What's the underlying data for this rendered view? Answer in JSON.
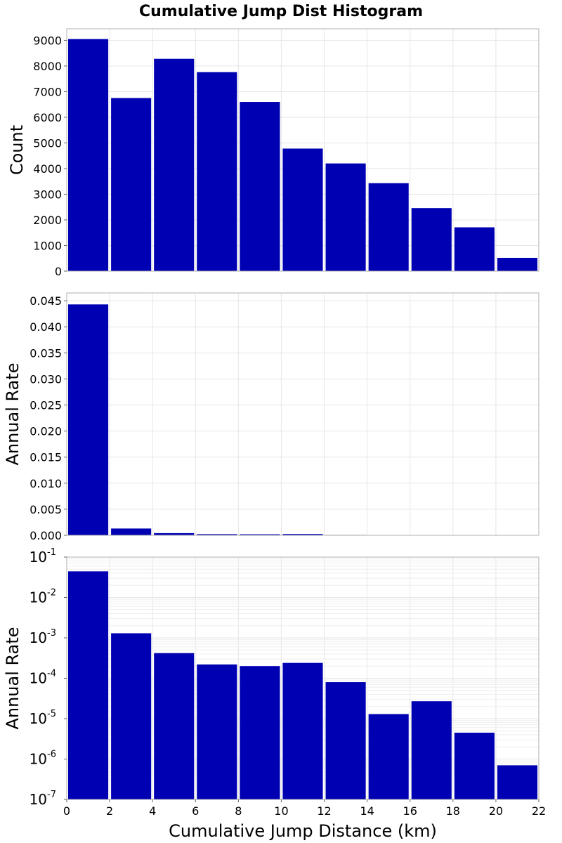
{
  "chart_data": {
    "type": "bar",
    "title": "Cumulative Jump Dist Histogram",
    "xlabel": "Cumulative Jump Distance (km)",
    "xlim": [
      0,
      22
    ],
    "x_ticks": [
      "0",
      "2",
      "4",
      "6",
      "8",
      "10",
      "12",
      "14",
      "16",
      "18",
      "20",
      "22"
    ],
    "bar_color": "#0000B3",
    "bins": [
      {
        "x0": 0,
        "x1": 2
      },
      {
        "x0": 2,
        "x1": 4
      },
      {
        "x0": 4,
        "x1": 6
      },
      {
        "x0": 6,
        "x1": 8
      },
      {
        "x0": 8,
        "x1": 10
      },
      {
        "x0": 10,
        "x1": 12
      },
      {
        "x0": 12,
        "x1": 14
      },
      {
        "x0": 14,
        "x1": 16
      },
      {
        "x0": 16,
        "x1": 18
      },
      {
        "x0": 18,
        "x1": 20
      },
      {
        "x0": 20,
        "x1": 22
      }
    ],
    "panels": [
      {
        "ylabel": "Count",
        "scale": "linear",
        "ylim": [
          0,
          9450
        ],
        "y_ticks": [
          "0",
          "1000",
          "2000",
          "3000",
          "4000",
          "5000",
          "6000",
          "7000",
          "8000",
          "9000"
        ],
        "y_tick_values": [
          0,
          1000,
          2000,
          3000,
          4000,
          5000,
          6000,
          7000,
          8000,
          9000
        ],
        "values": [
          9050,
          6750,
          8280,
          7760,
          6600,
          4780,
          4200,
          3430,
          2460,
          1710,
          520
        ]
      },
      {
        "ylabel": "Annual Rate",
        "scale": "linear",
        "ylim": [
          0,
          0.0465
        ],
        "y_ticks": [
          "0.000",
          "0.005",
          "0.010",
          "0.015",
          "0.020",
          "0.025",
          "0.030",
          "0.035",
          "0.040",
          "0.045"
        ],
        "y_tick_values": [
          0,
          0.005,
          0.01,
          0.015,
          0.02,
          0.025,
          0.03,
          0.035,
          0.04,
          0.045
        ],
        "values": [
          0.0443,
          0.0013,
          0.00042,
          0.00022,
          0.0002,
          0.00024,
          8e-05,
          1.3e-05,
          2.7e-05,
          4.5e-06,
          7e-07
        ]
      },
      {
        "ylabel": "Annual Rate",
        "scale": "log",
        "ylim": [
          1e-07,
          0.1
        ],
        "y_ticks": [
          {
            "base": "10",
            "exp": "-7",
            "value": 1e-07
          },
          {
            "base": "10",
            "exp": "-6",
            "value": 1e-06
          },
          {
            "base": "10",
            "exp": "-5",
            "value": 1e-05
          },
          {
            "base": "10",
            "exp": "-4",
            "value": 0.0001
          },
          {
            "base": "10",
            "exp": "-3",
            "value": 0.001
          },
          {
            "base": "10",
            "exp": "-2",
            "value": 0.01
          },
          {
            "base": "10",
            "exp": "-1",
            "value": 0.1
          }
        ],
        "values": [
          0.0443,
          0.0013,
          0.00042,
          0.00022,
          0.0002,
          0.00024,
          8e-05,
          1.3e-05,
          2.7e-05,
          4.5e-06,
          7e-07
        ]
      }
    ]
  }
}
